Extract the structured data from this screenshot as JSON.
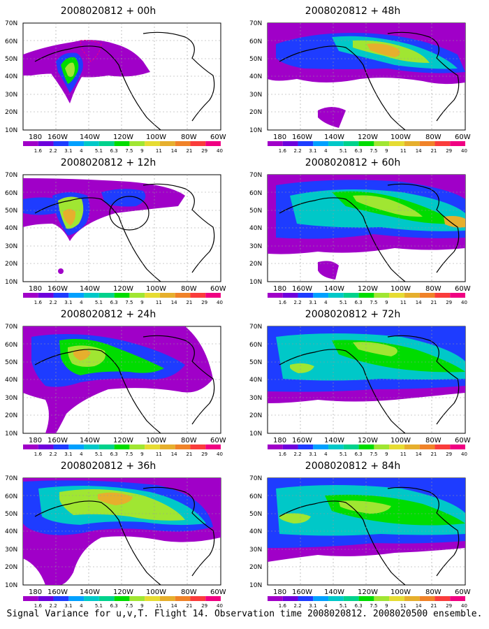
{
  "figure": {
    "caption": "Signal Variance for u,v,T. Flight 14. Observation time 2008020812. 2008020500 ensemble."
  },
  "colorbar": {
    "labels": [
      "1.6",
      "2.2",
      "3.1",
      "4",
      "5.1",
      "6.3",
      "7.5",
      "9",
      "11",
      "14",
      "21",
      "29",
      "40"
    ],
    "colors": [
      "#a000c8",
      "#6e00dc",
      "#1e3cff",
      "#00a0ff",
      "#00c8c8",
      "#00d28c",
      "#00dc00",
      "#a0e632",
      "#e6dc32",
      "#e6af2d",
      "#f08228",
      "#fa3c3c",
      "#f00082"
    ]
  },
  "axes": {
    "y_labels": [
      "70N",
      "60N",
      "50N",
      "40N",
      "30N",
      "20N",
      "10N"
    ],
    "x_labels": [
      "180",
      "160W",
      "140W",
      "120W",
      "100W",
      "80W",
      "60W"
    ]
  },
  "panels": [
    {
      "title": "2008020812 + 00h"
    },
    {
      "title": "2008020812 + 48h"
    },
    {
      "title": "2008020812 + 12h"
    },
    {
      "title": "2008020812 + 60h"
    },
    {
      "title": "2008020812 + 24h"
    },
    {
      "title": "2008020812 + 72h"
    },
    {
      "title": "2008020812 + 36h"
    },
    {
      "title": "2008020812 + 84h"
    }
  ]
}
